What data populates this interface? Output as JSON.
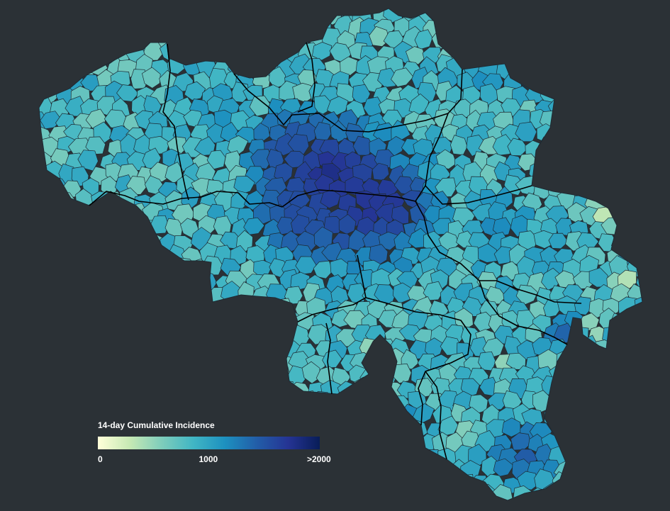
{
  "legend": {
    "title": "14-day Cumulative Incidence",
    "ticks": [
      {
        "label": "0",
        "value": 0
      },
      {
        "label": "1000",
        "value": 1000
      },
      {
        "label": ">2000",
        "value": 2000
      }
    ],
    "min": 0,
    "max": 2000,
    "colors": [
      "#ffffd9",
      "#c7e9b4",
      "#7fcdbb",
      "#41b6c4",
      "#1d91c0",
      "#225ea8",
      "#253494",
      "#081d58"
    ]
  },
  "map_colors": {
    "background": "#2b3136",
    "border_municipality": "#1e2a33",
    "border_province": "#000000"
  }
}
